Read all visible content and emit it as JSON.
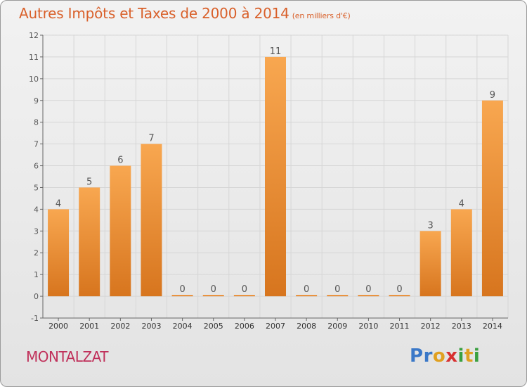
{
  "title": "Autres Impôts et Taxes de 2000 à 2014",
  "title_unit": "(en milliers d'€)",
  "commune": "MONTALZAT",
  "logo": {
    "letters": [
      "P",
      "r",
      "o",
      "x",
      "i",
      "t",
      "i"
    ],
    "colors": [
      "#3a78c8",
      "#3a78c8",
      "#e0a020",
      "#d83030",
      "#3aa040",
      "#e0a020",
      "#3aa040"
    ]
  },
  "colors": {
    "title": "#d9602a",
    "commune": "#c0305a",
    "bar_light": "#f8a750",
    "bar_dark": "#d7751e",
    "grid": "#d6d6d6"
  },
  "chart_data": {
    "type": "bar",
    "title": "Autres Impôts et Taxes de 2000 à 2014",
    "ylabel": "",
    "xlabel": "",
    "categories": [
      "2000",
      "2001",
      "2002",
      "2003",
      "2004",
      "2005",
      "2006",
      "2007",
      "2008",
      "2009",
      "2010",
      "2011",
      "2012",
      "2013",
      "2014"
    ],
    "values": [
      4,
      5,
      6,
      7,
      0,
      0,
      0,
      11,
      0,
      0,
      0,
      0,
      3,
      4,
      9
    ],
    "ylim": [
      -1,
      12
    ],
    "yticks": [
      "-1",
      "0",
      "1",
      "2",
      "3",
      "4",
      "5",
      "6",
      "7",
      "8",
      "9",
      "10",
      "11",
      "12"
    ],
    "grid": true,
    "legend": "none"
  }
}
